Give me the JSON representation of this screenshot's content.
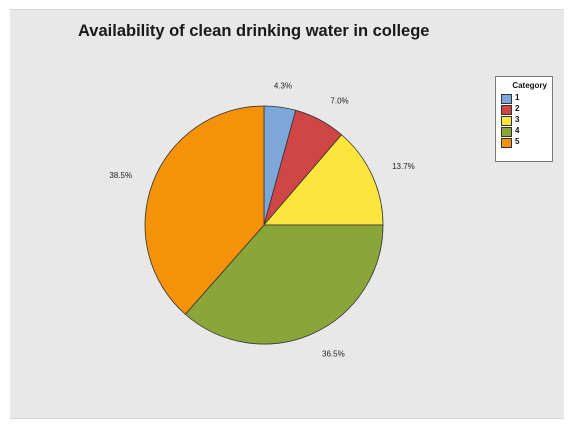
{
  "chart_data": {
    "type": "pie",
    "title": "Availability of clean drinking water in college",
    "legend": {
      "title": "Category",
      "position": "top-right"
    },
    "slices": [
      {
        "category": "1",
        "percent": 4.3,
        "label": "4.3%",
        "color": "#7da7d9"
      },
      {
        "category": "2",
        "percent": 7.0,
        "label": "7.0%",
        "color": "#cf4646"
      },
      {
        "category": "3",
        "percent": 13.7,
        "label": "13.7%",
        "color": "#fce63e"
      },
      {
        "category": "4",
        "percent": 36.5,
        "label": "36.5%",
        "color": "#8aa63a"
      },
      {
        "category": "5",
        "percent": 38.5,
        "label": "38.5%",
        "color": "#f4930a"
      }
    ],
    "start_angle_deg": 0,
    "direction": "clockwise"
  }
}
